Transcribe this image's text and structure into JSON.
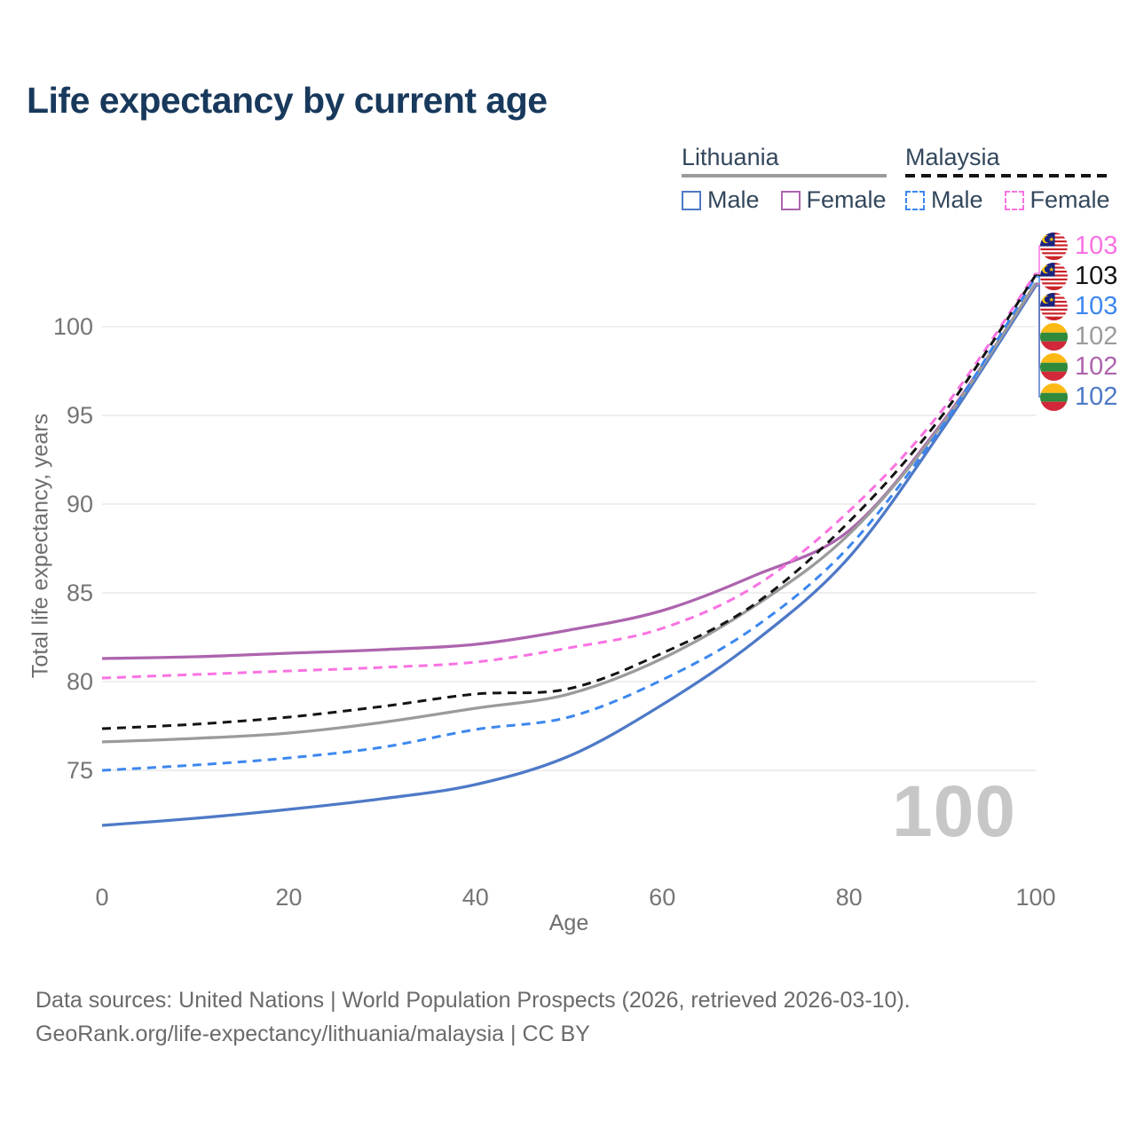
{
  "title": "Life expectancy by current age",
  "legend": {
    "groups": [
      {
        "label": "Lithuania",
        "line_style": "solid",
        "underline_color": "#9b9b9b",
        "items": [
          {
            "label": "Male",
            "color": "#4e79c7",
            "dashed": false
          },
          {
            "label": "Female",
            "color": "#ad64ad",
            "dashed": false
          }
        ]
      },
      {
        "label": "Malaysia",
        "line_style": "dashed",
        "underline_color": "#141414",
        "items": [
          {
            "label": "Male",
            "color": "#3c87f0",
            "dashed": true
          },
          {
            "label": "Female",
            "color": "#f972e2",
            "dashed": true
          }
        ]
      }
    ]
  },
  "axes": {
    "y": {
      "label": "Total life expectancy, years",
      "ticks": [
        75,
        80,
        85,
        90,
        95,
        100
      ]
    },
    "x": {
      "label": "Age",
      "ticks": [
        0,
        20,
        40,
        60,
        80,
        100
      ]
    }
  },
  "watermark": "100",
  "end_labels": [
    {
      "flag": "malaysia",
      "value": "103",
      "color": "#f972e2",
      "series": "Malaysia Female"
    },
    {
      "flag": "malaysia",
      "value": "103",
      "color": "#141414",
      "series": "Malaysia"
    },
    {
      "flag": "malaysia",
      "value": "103",
      "color": "#3c87f0",
      "series": "Malaysia Male"
    },
    {
      "flag": "lithuania",
      "value": "102",
      "color": "#9b9b9b",
      "series": "Lithuania"
    },
    {
      "flag": "lithuania",
      "value": "102",
      "color": "#ad64ad",
      "series": "Lithuania Female"
    },
    {
      "flag": "lithuania",
      "value": "102",
      "color": "#4e79c7",
      "series": "Lithuania Male"
    }
  ],
  "footer": {
    "line1": "Data sources: United Nations | World Population Prospects (2026, retrieved 2026-03-10).",
    "line2": "GeoRank.org/life-expectancy/lithuania/malaysia | CC BY"
  },
  "chart_data": {
    "type": "line",
    "title": "Life expectancy by current age",
    "xlabel": "Age",
    "ylabel": "Total life expectancy, years",
    "x": [
      0,
      10,
      20,
      30,
      40,
      50,
      60,
      70,
      80,
      90,
      100
    ],
    "xlim": [
      0,
      100
    ],
    "ylim": [
      71,
      104
    ],
    "xticks": [
      0,
      20,
      40,
      60,
      80,
      100
    ],
    "yticks": [
      75,
      80,
      85,
      90,
      95,
      100
    ],
    "grid": "horizontal",
    "legend_position": "top-right",
    "series": [
      {
        "name": "Lithuania Male",
        "country": "Lithuania",
        "sex": "male",
        "color": "#4e79c7",
        "dashed": false,
        "values": [
          71.9,
          72.3,
          72.8,
          73.4,
          74.2,
          75.8,
          78.7,
          82.3,
          87.0,
          94.2,
          102.3
        ],
        "end_label": "102"
      },
      {
        "name": "Lithuania Female",
        "country": "Lithuania",
        "sex": "female",
        "color": "#ad64ad",
        "dashed": false,
        "values": [
          81.3,
          81.4,
          81.6,
          81.8,
          82.1,
          82.9,
          84.0,
          86.0,
          88.5,
          94.6,
          102.4
        ],
        "end_label": "102"
      },
      {
        "name": "Lithuania",
        "country": "Lithuania",
        "sex": "total",
        "color": "#9b9b9b",
        "dashed": false,
        "values": [
          76.6,
          76.8,
          77.1,
          77.7,
          78.5,
          79.3,
          81.3,
          84.3,
          88.3,
          94.5,
          102.45
        ],
        "end_label": "102"
      },
      {
        "name": "Malaysia Male",
        "country": "Malaysia",
        "sex": "male",
        "color": "#3c87f0",
        "dashed": true,
        "values": [
          75.0,
          75.3,
          75.7,
          76.3,
          77.3,
          78.0,
          80.1,
          83.1,
          87.6,
          94.4,
          102.8
        ],
        "end_label": "103"
      },
      {
        "name": "Malaysia Female",
        "country": "Malaysia",
        "sex": "female",
        "color": "#f972e2",
        "dashed": true,
        "values": [
          80.2,
          80.4,
          80.6,
          80.8,
          81.1,
          81.9,
          83.0,
          85.4,
          89.6,
          95.3,
          103.0
        ],
        "end_label": "103"
      },
      {
        "name": "Malaysia",
        "country": "Malaysia",
        "sex": "total",
        "color": "#141414",
        "dashed": true,
        "values": [
          77.35,
          77.6,
          78.0,
          78.6,
          79.3,
          79.6,
          81.6,
          84.4,
          89.0,
          95.0,
          102.9
        ],
        "end_label": "103"
      }
    ]
  }
}
